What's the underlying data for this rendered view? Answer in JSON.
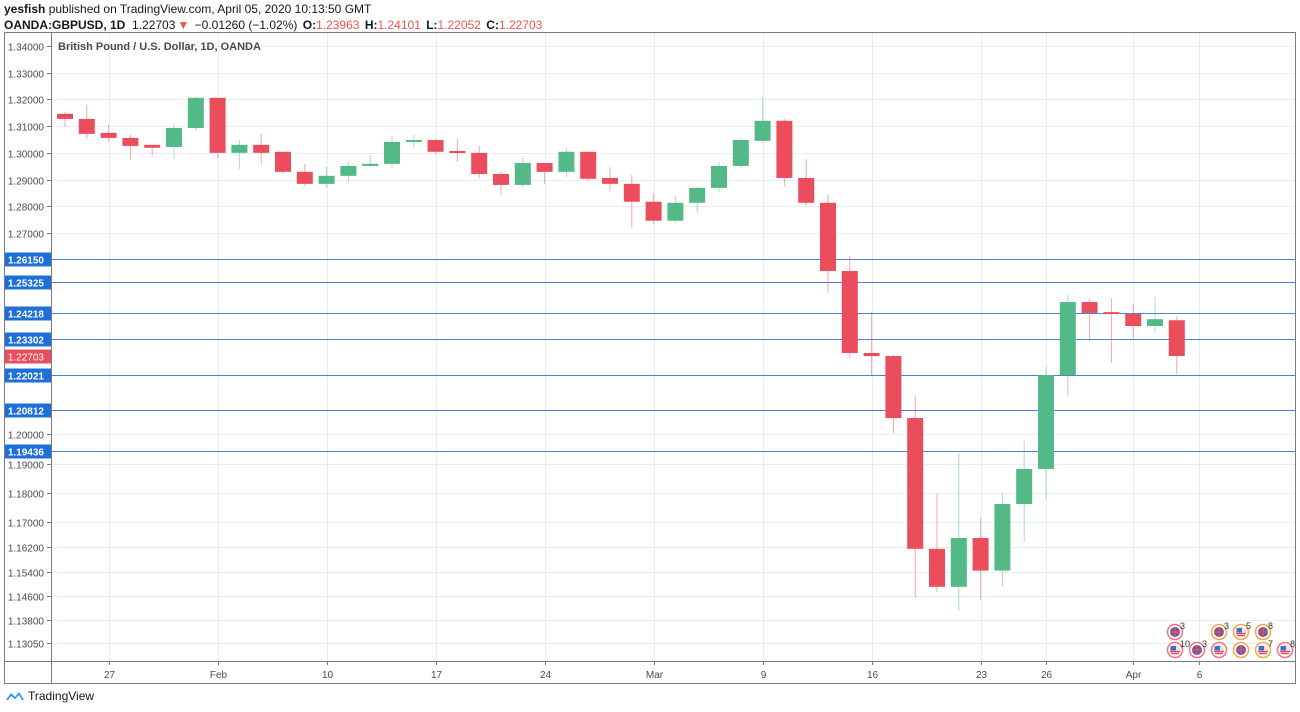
{
  "header": {
    "author": "yesfish",
    "published": "published on TradingView.com, April 05, 2020 10:13:50 GMT",
    "symbol": "OANDA:GBPUSD, 1D",
    "last": "1.22703",
    "change": "−0.01260 (−1.02%)",
    "o_label": "O:",
    "o": "1.23963",
    "h_label": "H:",
    "h": "1.24101",
    "l_label": "L:",
    "l": "1.22052",
    "c_label": "C:",
    "c": "1.22703",
    "down_icon": "triangle-down-icon"
  },
  "chart_title": "British Pound / U.S. Dollar, 1D, OANDA",
  "colors": {
    "up": "#53b987",
    "down": "#eb4d5c",
    "level": "#1e6fd9",
    "grid": "#e6eef3"
  },
  "logo_text": "TradingView",
  "chart_data": {
    "type": "candlestick",
    "title": "British Pound / U.S. Dollar, 1D, OANDA",
    "price_ticks": [
      "1.34000",
      "1.33000",
      "1.32000",
      "1.31000",
      "1.30000",
      "1.29000",
      "1.28000",
      "1.27000",
      "1.20000",
      "1.19000",
      "1.18000",
      "1.17000",
      "1.16200",
      "1.15400",
      "1.14600",
      "1.13800",
      "1.13050"
    ],
    "levels": [
      "1.26150",
      "1.25325",
      "1.24218",
      "1.23302",
      "1.22021",
      "1.20812",
      "1.19436"
    ],
    "last_price": "1.22703",
    "x_ticks": [
      {
        "label": "27",
        "index": 2
      },
      {
        "label": "Feb",
        "index": 7
      },
      {
        "label": "10",
        "index": 12
      },
      {
        "label": "17",
        "index": 17
      },
      {
        "label": "24",
        "index": 22
      },
      {
        "label": "Mar",
        "index": 27
      },
      {
        "label": "9",
        "index": 32
      },
      {
        "label": "16",
        "index": 37
      },
      {
        "label": "23",
        "index": 42
      },
      {
        "label": "26",
        "index": 45
      },
      {
        "label": "Apr",
        "index": 49
      },
      {
        "label": "6",
        "index": 52
      }
    ],
    "candles": [
      [
        1.3146,
        1.3153,
        1.3097,
        1.3127
      ],
      [
        1.3127,
        1.3179,
        1.3056,
        1.3071
      ],
      [
        1.3075,
        1.3105,
        1.3041,
        1.3056
      ],
      [
        1.3056,
        1.3067,
        1.2974,
        1.3026
      ],
      [
        1.303,
        1.303,
        1.2989,
        1.3019
      ],
      [
        1.3022,
        1.3112,
        1.2977,
        1.3093
      ],
      [
        1.3093,
        1.3209,
        1.3082,
        1.3206
      ],
      [
        1.3206,
        1.3206,
        1.2981,
        1.3
      ],
      [
        1.3,
        1.3048,
        1.294,
        1.303
      ],
      [
        1.303,
        1.3071,
        1.2955,
        1.3
      ],
      [
        1.3004,
        1.3004,
        1.2921,
        1.2929
      ],
      [
        1.2929,
        1.2959,
        1.2876,
        1.2884
      ],
      [
        1.2884,
        1.2947,
        1.2869,
        1.2914
      ],
      [
        1.2914,
        1.2966,
        1.2891,
        1.2951
      ],
      [
        1.2951,
        1.2992,
        1.2947,
        1.2959
      ],
      [
        1.2959,
        1.3067,
        1.2944,
        1.3041
      ],
      [
        1.3041,
        1.3067,
        1.3019,
        1.3048
      ],
      [
        1.3048,
        1.3052,
        1.2995,
        1.3004
      ],
      [
        1.3007,
        1.3052,
        1.2966,
        1.3
      ],
      [
        1.3,
        1.3026,
        1.2906,
        1.2921
      ],
      [
        1.2921,
        1.2929,
        1.2843,
        1.288
      ],
      [
        1.288,
        1.2981,
        1.2873,
        1.2962
      ],
      [
        1.2962,
        1.2962,
        1.2884,
        1.2929
      ],
      [
        1.2929,
        1.3019,
        1.291,
        1.3004
      ],
      [
        1.3004,
        1.3004,
        1.2895,
        1.2903
      ],
      [
        1.2906,
        1.2947,
        1.2858,
        1.2884
      ],
      [
        1.2884,
        1.2918,
        1.2719,
        1.2817
      ],
      [
        1.2817,
        1.285,
        1.2734,
        1.2746
      ],
      [
        1.2746,
        1.2839,
        1.2737,
        1.2813
      ],
      [
        1.2813,
        1.2873,
        1.2776,
        1.2869
      ],
      [
        1.2869,
        1.2966,
        1.2854,
        1.2951
      ],
      [
        1.2951,
        1.3056,
        1.2944,
        1.3048
      ],
      [
        1.3045,
        1.3209,
        1.3037,
        1.312
      ],
      [
        1.312,
        1.3127,
        1.2876,
        1.2906
      ],
      [
        1.2906,
        1.2977,
        1.2802,
        1.2813
      ],
      [
        1.2813,
        1.2846,
        1.2493,
        1.2572
      ],
      [
        1.2572,
        1.2625,
        1.2263,
        1.2281
      ],
      [
        1.2281,
        1.2425,
        1.2199,
        1.227
      ],
      [
        1.227,
        1.2274,
        1.2003,
        1.2054
      ],
      [
        1.2054,
        1.213,
        1.1453,
        1.1614
      ],
      [
        1.1614,
        1.1797,
        1.1473,
        1.149
      ],
      [
        1.149,
        1.1937,
        1.141,
        1.1649
      ],
      [
        1.1649,
        1.1714,
        1.1447,
        1.1543
      ],
      [
        1.1543,
        1.18,
        1.1493,
        1.1762
      ],
      [
        1.1762,
        1.1977,
        1.1636,
        1.1883
      ],
      [
        1.1883,
        1.2231,
        1.1776,
        1.2202
      ],
      [
        1.2202,
        1.2486,
        1.213,
        1.2461
      ],
      [
        1.2461,
        1.2472,
        1.232,
        1.2422
      ],
      [
        1.2425,
        1.2475,
        1.2245,
        1.2418
      ],
      [
        1.2418,
        1.2454,
        1.233,
        1.2376
      ],
      [
        1.2376,
        1.2479,
        1.2351,
        1.24
      ],
      [
        1.23963,
        1.24101,
        1.22052,
        1.22703
      ]
    ],
    "events": [
      {
        "row": 1,
        "slot": 0,
        "flag": "uk",
        "impact": "high",
        "count": "3"
      },
      {
        "row": 1,
        "slot": 2,
        "flag": "uk",
        "impact": "medium",
        "count": "3"
      },
      {
        "row": 1,
        "slot": 3,
        "flag": "us",
        "impact": "medium",
        "count": "5"
      },
      {
        "row": 1,
        "slot": 4,
        "flag": "uk",
        "impact": "medium",
        "count": "8"
      },
      {
        "row": 2,
        "slot": 0,
        "flag": "us",
        "impact": "high",
        "count": "10"
      },
      {
        "row": 2,
        "slot": 1,
        "flag": "uk",
        "impact": "high",
        "count": "3"
      },
      {
        "row": 2,
        "slot": 2,
        "flag": "us",
        "impact": "high",
        "count": ""
      },
      {
        "row": 2,
        "slot": 3,
        "flag": "uk",
        "impact": "medium",
        "count": ""
      },
      {
        "row": 2,
        "slot": 4,
        "flag": "us",
        "impact": "medium",
        "count": "7"
      },
      {
        "row": 2,
        "slot": 5,
        "flag": "us",
        "impact": "high",
        "count": "8"
      }
    ]
  }
}
